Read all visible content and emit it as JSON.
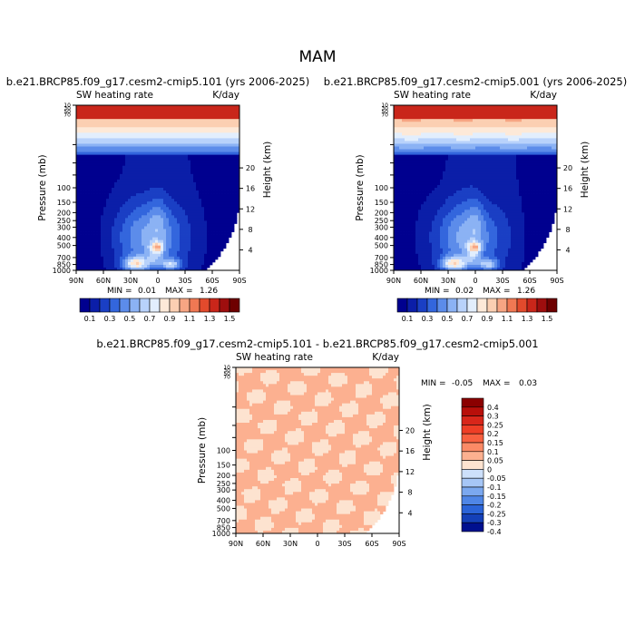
{
  "figure": {
    "title": "MAM"
  },
  "panels": [
    {
      "title": "b.e21.BRCP85.f09_g17.cesm2-cmip5.101 (yrs 2006-2025)",
      "variable": "SW heating rate",
      "units": "K/day",
      "ylabel": "Pressure (mb)",
      "ylabel_right": "Height (km)",
      "min_label": "MIN =",
      "min_value": "0.01",
      "max_label": "MAX =",
      "max_value": "1.26"
    },
    {
      "title": "b.e21.BRCP85.f09_g17.cesm2-cmip5.001 (yrs 2006-2025)",
      "variable": "SW heating rate",
      "units": "K/day",
      "ylabel": "Pressure (mb)",
      "ylabel_right": "Height (km)",
      "min_label": "MIN =",
      "min_value": "0.02",
      "max_label": "MAX =",
      "max_value": "1.26"
    },
    {
      "title": "b.e21.BRCP85.f09_g17.cesm2-cmip5.101 - b.e21.BRCP85.f09_g17.cesm2-cmip5.001",
      "variable": "SW heating rate",
      "units": "K/day",
      "ylabel": "Pressure (mb)",
      "ylabel_right": "Height (km)",
      "min_label": "MIN =",
      "min_value": "-0.05",
      "max_label": "MAX =",
      "max_value": "0.03"
    }
  ],
  "colorbar_main": {
    "labels": [
      "0.1",
      "0.3",
      "0.5",
      "0.7",
      "0.9",
      "1.1",
      "1.3",
      "1.5"
    ],
    "colors": [
      "#00008f",
      "#0b1ea8",
      "#1a3fc4",
      "#3366dd",
      "#5c8cea",
      "#8bb2f4",
      "#b8d2fb",
      "#e2eefd",
      "#fde9d8",
      "#fbcfb2",
      "#f7a583",
      "#f07853",
      "#e24a2c",
      "#c9261a",
      "#9e0e0e",
      "#6e0000"
    ]
  },
  "colorbar_diff": {
    "labels": [
      "0.4",
      "0.3",
      "0.25",
      "0.2",
      "0.15",
      "0.1",
      "0.05",
      "0",
      "-0.05",
      "-0.1",
      "-0.15",
      "-0.2",
      "-0.25",
      "-0.3",
      "-0.4"
    ],
    "colors": [
      "#8b0000",
      "#b80f0a",
      "#d8261a",
      "#ee3e26",
      "#f86040",
      "#fb8a66",
      "#fcb090",
      "#fde3d0",
      "#cde0fb",
      "#a6c6f6",
      "#7ba8ef",
      "#4f86e6",
      "#2b64d8",
      "#1440b8",
      "#00108f"
    ]
  },
  "chart_data": [
    {
      "type": "heatmap",
      "title": "b.e21.BRCP85.f09_g17.cesm2-cmip5.101 (yrs 2006-2025)",
      "xlabel": "",
      "ylabel": "Pressure (mb)",
      "ylabel_right": "Height (km)",
      "x_ticks": [
        "90N",
        "60N",
        "30N",
        "0",
        "30S",
        "60S",
        "90S"
      ],
      "y_ticks": [
        "10",
        "30",
        "50",
        "70",
        "100",
        "150",
        "200",
        "250",
        "300",
        "400",
        "500",
        "700",
        "850",
        "1000"
      ],
      "y_ticks_right": [
        "20",
        "16",
        "12",
        "8",
        "4"
      ],
      "levels": [
        0.1,
        0.2,
        0.3,
        0.4,
        0.5,
        0.6,
        0.7,
        0.8,
        0.9,
        1.0,
        1.1,
        1.2,
        1.3,
        1.4,
        1.5
      ],
      "min": 0.01,
      "max": 1.26
    },
    {
      "type": "heatmap",
      "title": "b.e21.BRCP85.f09_g17.cesm2-cmip5.001 (yrs 2006-2025)",
      "xlabel": "",
      "ylabel": "Pressure (mb)",
      "ylabel_right": "Height (km)",
      "x_ticks": [
        "90N",
        "60N",
        "30N",
        "0",
        "30S",
        "60S",
        "90S"
      ],
      "y_ticks": [
        "10",
        "30",
        "50",
        "70",
        "100",
        "150",
        "200",
        "250",
        "300",
        "400",
        "500",
        "700",
        "850",
        "1000"
      ],
      "y_ticks_right": [
        "20",
        "16",
        "12",
        "8",
        "4"
      ],
      "levels": [
        0.1,
        0.2,
        0.3,
        0.4,
        0.5,
        0.6,
        0.7,
        0.8,
        0.9,
        1.0,
        1.1,
        1.2,
        1.3,
        1.4,
        1.5
      ],
      "min": 0.02,
      "max": 1.26
    },
    {
      "type": "heatmap",
      "title": "b.e21.BRCP85.f09_g17.cesm2-cmip5.101 - b.e21.BRCP85.f09_g17.cesm2-cmip5.001",
      "xlabel": "",
      "ylabel": "Pressure (mb)",
      "ylabel_right": "Height (km)",
      "x_ticks": [
        "90N",
        "60N",
        "30N",
        "0",
        "30S",
        "60S",
        "90S"
      ],
      "y_ticks": [
        "10",
        "30",
        "50",
        "70",
        "100",
        "150",
        "200",
        "250",
        "300",
        "400",
        "500",
        "700",
        "850",
        "1000"
      ],
      "y_ticks_right": [
        "20",
        "16",
        "12",
        "8",
        "4"
      ],
      "levels": [
        -0.4,
        -0.3,
        -0.25,
        -0.2,
        -0.15,
        -0.1,
        -0.05,
        0,
        0.05,
        0.1,
        0.15,
        0.2,
        0.25,
        0.3,
        0.4
      ],
      "min": -0.05,
      "max": 0.03
    }
  ]
}
